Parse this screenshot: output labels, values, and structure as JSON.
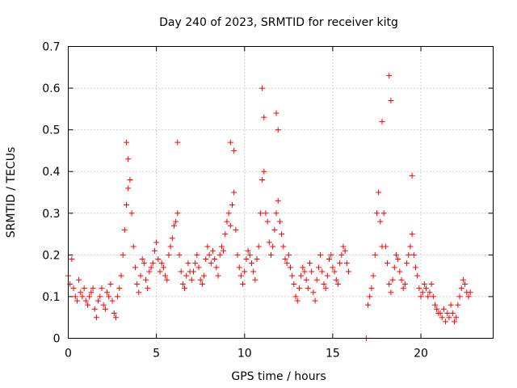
{
  "chart_data": {
    "type": "scatter",
    "title": "Day 240 of 2023, SRMTID for receiver kitg",
    "xlabel": "GPS time / hours",
    "ylabel": "SRMTID / TECUs",
    "xlim": [
      0,
      24.1
    ],
    "ylim": [
      0,
      0.7
    ],
    "grid": true,
    "marker": "+",
    "color": "#ff0000",
    "xticks": [
      0,
      5,
      10,
      15,
      20
    ],
    "yticks": [
      0,
      0.1,
      0.2,
      0.3,
      0.4,
      0.5,
      0.6,
      0.7
    ],
    "xtick_labels": [
      "0",
      "5",
      "10",
      "15",
      "20"
    ],
    "ytick_labels": [
      "0",
      "0.1",
      "0.2",
      "0.3",
      "0.4",
      "0.5",
      "0.6",
      "0.7"
    ],
    "series": [
      {
        "name": "SRMTID",
        "x": [
          0.0,
          0.1,
          0.2,
          0.3,
          0.4,
          0.5,
          0.6,
          0.7,
          0.8,
          0.9,
          1.0,
          1.1,
          1.2,
          1.3,
          1.4,
          1.5,
          1.6,
          1.7,
          1.8,
          1.9,
          2.0,
          2.1,
          2.2,
          2.3,
          2.4,
          2.5,
          2.6,
          2.7,
          2.8,
          2.9,
          3.0,
          3.1,
          3.2,
          3.3,
          3.4,
          3.5,
          3.6,
          3.7,
          3.8,
          3.9,
          4.0,
          4.1,
          4.2,
          4.3,
          4.4,
          4.5,
          4.6,
          4.7,
          4.8,
          4.9,
          5.0,
          5.1,
          5.2,
          5.3,
          5.4,
          5.5,
          5.6,
          5.7,
          5.8,
          5.9,
          6.0,
          6.1,
          6.2,
          6.3,
          6.4,
          6.5,
          6.6,
          6.7,
          6.8,
          6.9,
          7.0,
          7.1,
          7.2,
          7.3,
          7.4,
          7.5,
          7.6,
          7.7,
          7.8,
          7.9,
          8.0,
          8.1,
          8.2,
          8.3,
          8.4,
          8.5,
          8.6,
          8.7,
          8.8,
          8.9,
          9.0,
          9.1,
          9.2,
          9.3,
          9.4,
          9.5,
          9.6,
          9.7,
          9.8,
          9.9,
          10.0,
          10.1,
          10.2,
          10.3,
          10.4,
          10.5,
          10.6,
          10.7,
          10.8,
          10.9,
          11.0,
          11.1,
          11.2,
          11.3,
          11.4,
          11.5,
          11.6,
          11.7,
          11.8,
          11.9,
          12.0,
          12.1,
          12.2,
          12.3,
          12.4,
          12.5,
          12.6,
          12.7,
          12.8,
          12.9,
          13.0,
          13.1,
          13.2,
          13.3,
          13.4,
          13.5,
          13.6,
          13.7,
          13.8,
          13.9,
          14.0,
          14.1,
          14.2,
          14.3,
          14.4,
          14.5,
          14.6,
          14.7,
          14.8,
          14.9,
          15.0,
          15.1,
          15.2,
          15.3,
          15.4,
          15.5,
          15.6,
          15.7,
          15.8,
          15.9,
          16.9,
          17.0,
          17.1,
          17.2,
          17.3,
          17.4,
          17.5,
          17.6,
          17.7,
          17.8,
          17.9,
          18.0,
          18.1,
          18.2,
          18.3,
          18.4,
          18.5,
          18.6,
          18.7,
          18.8,
          18.9,
          19.0,
          19.1,
          19.2,
          19.3,
          19.4,
          19.5,
          19.6,
          19.7,
          19.8,
          19.9,
          20.0,
          20.1,
          20.2,
          20.3,
          20.4,
          20.5,
          20.6,
          20.7,
          20.8,
          20.9,
          21.0,
          21.1,
          21.2,
          21.3,
          21.4,
          21.5,
          21.6,
          21.7,
          21.8,
          21.9,
          22.0,
          22.1,
          22.2,
          22.3,
          22.4,
          22.5,
          22.6,
          22.7,
          22.8,
          3.3,
          3.4,
          6.2,
          9.2,
          9.4,
          11.0,
          11.1,
          11.8,
          11.9,
          17.8,
          18.2,
          18.3,
          19.5
        ],
        "y": [
          0.15,
          0.13,
          0.19,
          0.12,
          0.1,
          0.09,
          0.14,
          0.11,
          0.1,
          0.12,
          0.09,
          0.08,
          0.1,
          0.11,
          0.12,
          0.07,
          0.05,
          0.09,
          0.1,
          0.12,
          0.08,
          0.07,
          0.11,
          0.1,
          0.13,
          0.09,
          0.06,
          0.05,
          0.1,
          0.12,
          0.15,
          0.2,
          0.26,
          0.32,
          0.36,
          0.38,
          0.3,
          0.22,
          0.17,
          0.13,
          0.11,
          0.15,
          0.19,
          0.18,
          0.14,
          0.12,
          0.16,
          0.17,
          0.18,
          0.21,
          0.23,
          0.19,
          0.16,
          0.18,
          0.17,
          0.15,
          0.14,
          0.2,
          0.22,
          0.24,
          0.27,
          0.28,
          0.3,
          0.2,
          0.16,
          0.13,
          0.12,
          0.15,
          0.18,
          0.16,
          0.14,
          0.16,
          0.18,
          0.2,
          0.17,
          0.14,
          0.13,
          0.15,
          0.19,
          0.22,
          0.2,
          0.18,
          0.21,
          0.19,
          0.17,
          0.15,
          0.2,
          0.22,
          0.21,
          0.25,
          0.28,
          0.3,
          0.27,
          0.32,
          0.35,
          0.26,
          0.2,
          0.17,
          0.15,
          0.13,
          0.16,
          0.19,
          0.21,
          0.2,
          0.18,
          0.16,
          0.14,
          0.19,
          0.22,
          0.3,
          0.38,
          0.4,
          0.3,
          0.28,
          0.23,
          0.2,
          0.22,
          0.26,
          0.3,
          0.33,
          0.28,
          0.25,
          0.22,
          0.19,
          0.18,
          0.2,
          0.17,
          0.15,
          0.13,
          0.1,
          0.09,
          0.12,
          0.15,
          0.17,
          0.16,
          0.14,
          0.12,
          0.18,
          0.16,
          0.11,
          0.09,
          0.14,
          0.17,
          0.2,
          0.16,
          0.13,
          0.12,
          0.15,
          0.19,
          0.2,
          0.17,
          0.16,
          0.14,
          0.13,
          0.18,
          0.2,
          0.22,
          0.21,
          0.18,
          0.16,
          0.0,
          0.08,
          0.1,
          0.12,
          0.15,
          0.2,
          0.3,
          0.35,
          0.28,
          0.22,
          0.3,
          0.22,
          0.18,
          0.13,
          0.11,
          0.14,
          0.17,
          0.2,
          0.19,
          0.16,
          0.14,
          0.12,
          0.13,
          0.18,
          0.2,
          0.22,
          0.25,
          0.2,
          0.17,
          0.15,
          0.12,
          0.1,
          0.11,
          0.13,
          0.12,
          0.1,
          0.11,
          0.13,
          0.1,
          0.08,
          0.07,
          0.06,
          0.06,
          0.05,
          0.07,
          0.04,
          0.06,
          0.05,
          0.08,
          0.06,
          0.04,
          0.05,
          0.08,
          0.1,
          0.12,
          0.14,
          0.13,
          0.11,
          0.1,
          0.11,
          0.47,
          0.43,
          0.47,
          0.47,
          0.45,
          0.6,
          0.53,
          0.54,
          0.5,
          0.52,
          0.63,
          0.57,
          0.39
        ]
      }
    ]
  }
}
